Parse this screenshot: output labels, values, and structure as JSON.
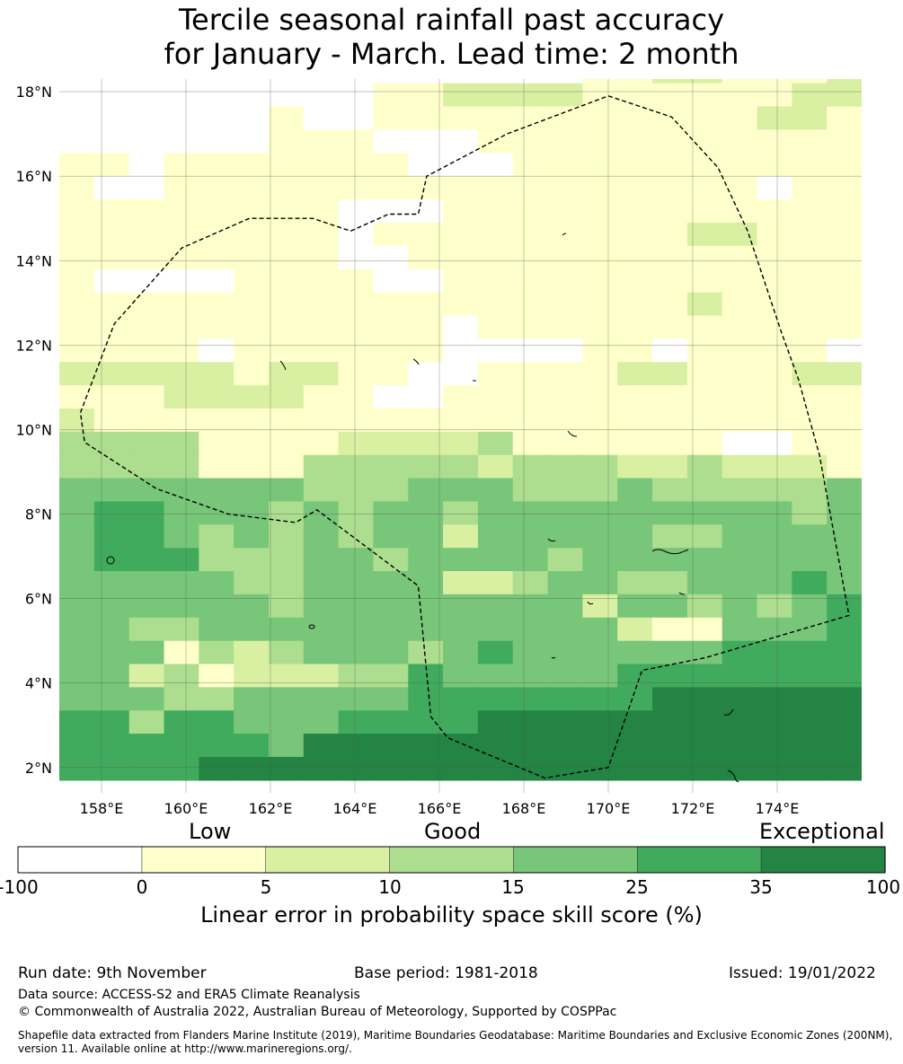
{
  "title": {
    "line1": "Tercile seasonal rainfall past accuracy",
    "line2": "for January - March. Lead time: 2 month"
  },
  "map": {
    "lat_labels": [
      "18°N",
      "16°N",
      "14°N",
      "12°N",
      "10°N",
      "8°N",
      "6°N",
      "4°N",
      "2°N"
    ],
    "lat_values": [
      18,
      16,
      14,
      12,
      10,
      8,
      6,
      4,
      2
    ],
    "lon_labels": [
      "158°E",
      "160°E",
      "162°E",
      "164°E",
      "166°E",
      "168°E",
      "170°E",
      "172°E",
      "174°E"
    ],
    "lon_values": [
      158,
      160,
      162,
      164,
      166,
      168,
      170,
      172,
      174
    ],
    "extent": {
      "lon_min": 157.0,
      "lon_max": 176.0,
      "lat_min": 1.4,
      "lat_max": 18.3
    },
    "eez_boundary": [
      [
        170.0,
        17.9
      ],
      [
        171.5,
        17.4
      ],
      [
        172.6,
        16.2
      ],
      [
        173.3,
        14.7
      ],
      [
        174.1,
        12.3
      ],
      [
        174.5,
        11.2
      ],
      [
        175.0,
        9.4
      ],
      [
        175.7,
        5.6
      ],
      [
        172.3,
        4.6
      ],
      [
        170.8,
        4.3
      ],
      [
        170.0,
        2.0
      ],
      [
        168.5,
        1.75
      ],
      [
        166.2,
        2.7
      ],
      [
        165.8,
        3.2
      ],
      [
        165.5,
        6.3
      ],
      [
        163.1,
        8.1
      ],
      [
        162.6,
        7.8
      ],
      [
        161.0,
        8.0
      ],
      [
        159.3,
        8.6
      ],
      [
        157.6,
        9.7
      ],
      [
        157.5,
        10.4
      ],
      [
        158.3,
        12.5
      ],
      [
        159.9,
        14.3
      ],
      [
        161.5,
        15.0
      ],
      [
        163.0,
        15.0
      ],
      [
        163.9,
        14.7
      ],
      [
        164.8,
        15.1
      ],
      [
        165.5,
        15.1
      ],
      [
        165.7,
        16.0
      ],
      [
        167.6,
        17.0
      ]
    ]
  },
  "colorbar": {
    "category_labels": [
      "Low",
      "Good",
      "Exceptional"
    ],
    "ticks": [
      "-100",
      "0",
      "5",
      "10",
      "15",
      "25",
      "35",
      "100"
    ],
    "colors": [
      "#ffffff",
      "#ffffcc",
      "#d9f0a3",
      "#addd8e",
      "#78c679",
      "#41ab5d",
      "#238443"
    ],
    "title": "Linear error in probability space skill score (%)"
  },
  "footer": {
    "run_date": "Run date: 9th November",
    "base_period": "Base period: 1981-2018",
    "issued": "Issued: 19/01/2022",
    "data_source": "Data source: ACCESS-S2 and ERA5 Climate Reanalysis",
    "copyright": "© Commonwealth of Australia 2022, Australian Bureau of Meteorology, Supported by COSPPac",
    "shapefile": "Shapefile data extracted from Flanders Marine Institute (2019), Maritime Boundaries Geodatabase: Maritime Boundaries and Exclusive Economic Zones (200NM), version 11. Available online at http://www.marineregions.org/."
  }
}
